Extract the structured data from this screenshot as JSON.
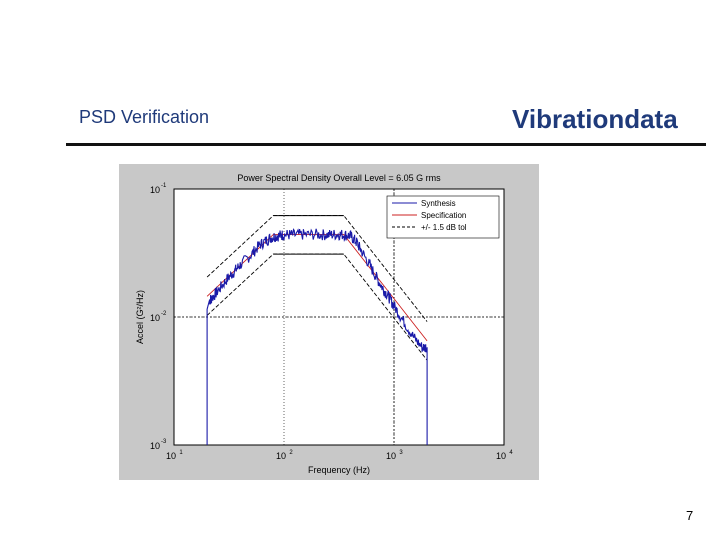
{
  "slide": {
    "title": "PSD Verification",
    "brand": "Vibrationdata",
    "page_number": "7"
  },
  "colors": {
    "synthesis": "#1a1aa8",
    "specification": "#cc2020",
    "tolerance": "#000000",
    "title_text": "#1f3a7a",
    "figure_bg": "#c8c8c8"
  },
  "chart_data": {
    "type": "line",
    "title": "Power Spectral Density  Overall Level = 6.05 G rms",
    "xlabel": "Frequency (Hz)",
    "ylabel": "Accel (G²/Hz)",
    "x_scale": "log",
    "y_scale": "log",
    "xlim": [
      10,
      10000
    ],
    "ylim": [
      0.001,
      0.1
    ],
    "grid": "dotted",
    "legend_position": "top-right",
    "x_ticks": [
      {
        "value": 10,
        "base": "10",
        "exp": "1"
      },
      {
        "value": 100,
        "base": "10",
        "exp": "2"
      },
      {
        "value": 1000,
        "base": "10",
        "exp": "3"
      },
      {
        "value": 10000,
        "base": "10",
        "exp": "4"
      }
    ],
    "y_ticks": [
      {
        "value": 0.1,
        "base": "10",
        "exp": "-1"
      },
      {
        "value": 0.01,
        "base": "10",
        "exp": "-2"
      },
      {
        "value": 0.001,
        "base": "10",
        "exp": "-3"
      }
    ],
    "series": [
      {
        "name": "Synthesis",
        "color": "#1a1aa8",
        "x": [
          20,
          20,
          21,
          22,
          25,
          30,
          35,
          40,
          50,
          60,
          70,
          80,
          90,
          100,
          120,
          150,
          200,
          250,
          300,
          350,
          400,
          450,
          500,
          600,
          700,
          800,
          900,
          1000,
          1200,
          1500,
          1800,
          2000,
          2000
        ],
        "y": [
          0.001,
          0.0115,
          0.0135,
          0.014,
          0.016,
          0.0195,
          0.0225,
          0.0255,
          0.0305,
          0.0365,
          0.04,
          0.0425,
          0.0432,
          0.044,
          0.0438,
          0.044,
          0.0442,
          0.0438,
          0.0442,
          0.044,
          0.043,
          0.039,
          0.0335,
          0.0255,
          0.02,
          0.0165,
          0.0143,
          0.0122,
          0.0095,
          0.007,
          0.0058,
          0.0058,
          0.001
        ]
      },
      {
        "name": "Specification",
        "color": "#cc2020",
        "x": [
          20,
          80,
          350,
          2000
        ],
        "y": [
          0.0145,
          0.044,
          0.044,
          0.0065
        ]
      },
      {
        "name": "+/- 1.5 dB tol",
        "color": "#000000",
        "dashed": true,
        "x": [
          20,
          80,
          350,
          2000
        ],
        "y": [
          0.0205,
          0.062,
          0.062,
          0.0092
        ]
      },
      {
        "name": "",
        "color": "#000000",
        "dashed": true,
        "x": [
          20,
          80,
          350,
          2000
        ],
        "y": [
          0.0103,
          0.031,
          0.031,
          0.0046
        ]
      }
    ],
    "upper_solid_x": [
      80,
      350
    ],
    "upper_solid_y": 0.062,
    "lower_solid_x": [
      80,
      350
    ],
    "lower_solid_y": 0.031,
    "ref_line_x": 1000,
    "ref_line_y": 0.01
  }
}
